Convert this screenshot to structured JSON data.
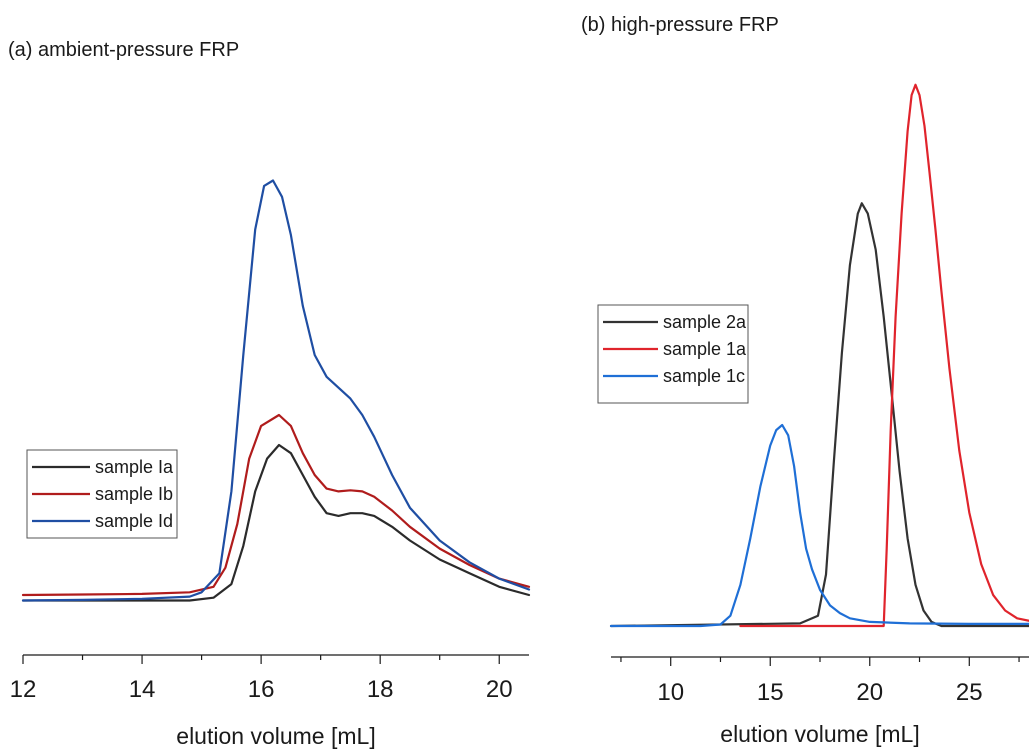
{
  "chart_data": [
    {
      "type": "line",
      "title": "(a) ambient-pressure FRP",
      "xlabel": "elution volume [mL]",
      "ylabel": "",
      "xlim": [
        12,
        20.5
      ],
      "ylim": [
        0,
        1.1
      ],
      "x_ticks": [
        12,
        14,
        16,
        18,
        20
      ],
      "x_tick_labels": [
        "12",
        "14",
        "16",
        "18",
        "20"
      ],
      "y_axis_shown": false,
      "grid": false,
      "legend_position": "left-middle",
      "series": [
        {
          "name": "sample Ia",
          "color": "#2b2b2b",
          "x": [
            12,
            13,
            14,
            14.8,
            15.2,
            15.5,
            15.7,
            15.9,
            16.1,
            16.3,
            16.5,
            16.7,
            16.9,
            17.1,
            17.3,
            17.5,
            17.7,
            17.9,
            18.2,
            18.5,
            19.0,
            19.5,
            20.0,
            20.5
          ],
          "y": [
            0.1,
            0.1,
            0.1,
            0.1,
            0.105,
            0.13,
            0.2,
            0.3,
            0.36,
            0.385,
            0.37,
            0.33,
            0.29,
            0.26,
            0.255,
            0.26,
            0.26,
            0.255,
            0.235,
            0.21,
            0.175,
            0.15,
            0.125,
            0.11
          ]
        },
        {
          "name": "sample Ib",
          "color": "#b01c1c",
          "x": [
            12,
            13,
            14,
            14.8,
            15.2,
            15.4,
            15.6,
            15.8,
            16.0,
            16.3,
            16.5,
            16.7,
            16.9,
            17.1,
            17.3,
            17.5,
            17.7,
            17.9,
            18.2,
            18.5,
            19.0,
            19.5,
            20.0,
            20.5
          ],
          "y": [
            0.11,
            0.111,
            0.112,
            0.115,
            0.125,
            0.16,
            0.24,
            0.36,
            0.42,
            0.44,
            0.42,
            0.37,
            0.33,
            0.305,
            0.3,
            0.302,
            0.3,
            0.29,
            0.265,
            0.235,
            0.195,
            0.165,
            0.14,
            0.125
          ]
        },
        {
          "name": "sample Id",
          "color": "#1f4ea3",
          "x": [
            12,
            13,
            14,
            14.8,
            15.0,
            15.3,
            15.5,
            15.7,
            15.9,
            16.05,
            16.2,
            16.35,
            16.5,
            16.7,
            16.9,
            17.1,
            17.3,
            17.5,
            17.7,
            17.9,
            18.2,
            18.5,
            19.0,
            19.5,
            20.0,
            20.5
          ],
          "y": [
            0.1,
            0.101,
            0.103,
            0.107,
            0.115,
            0.15,
            0.3,
            0.55,
            0.78,
            0.86,
            0.87,
            0.84,
            0.77,
            0.64,
            0.55,
            0.51,
            0.49,
            0.47,
            0.44,
            0.4,
            0.33,
            0.27,
            0.21,
            0.17,
            0.14,
            0.12
          ]
        }
      ]
    },
    {
      "type": "line",
      "title": "(b) high-pressure FRP",
      "xlabel": "elution volume [mL]",
      "ylabel": "",
      "xlim": [
        7,
        28
      ],
      "ylim": [
        0,
        1.1
      ],
      "x_ticks": [
        10,
        15,
        20,
        25
      ],
      "x_tick_labels": [
        "10",
        "15",
        "20",
        "25"
      ],
      "y_axis_shown": false,
      "grid": false,
      "legend_position": "left-middle",
      "series": [
        {
          "name": "sample 2a",
          "color": "#333333",
          "x": [
            7,
            16.5,
            17.4,
            17.8,
            18.2,
            18.6,
            19.0,
            19.4,
            19.6,
            19.9,
            20.3,
            20.7,
            21.1,
            21.5,
            21.9,
            22.3,
            22.7,
            23.1,
            23.6,
            28
          ],
          "y": [
            0,
            0.005,
            0.02,
            0.1,
            0.32,
            0.53,
            0.7,
            0.8,
            0.82,
            0.8,
            0.73,
            0.6,
            0.45,
            0.3,
            0.17,
            0.08,
            0.03,
            0.008,
            0.0,
            0.0
          ]
        },
        {
          "name": "sample 1a",
          "color": "#e0242c",
          "x": [
            13.5,
            20.7,
            20.85,
            21.05,
            21.3,
            21.6,
            21.9,
            22.1,
            22.3,
            22.5,
            22.75,
            23.0,
            23.3,
            23.6,
            24.0,
            24.5,
            25.0,
            25.6,
            26.2,
            26.8,
            27.4,
            28.0
          ],
          "y": [
            0,
            0,
            0.15,
            0.38,
            0.6,
            0.8,
            0.96,
            1.03,
            1.05,
            1.03,
            0.97,
            0.88,
            0.77,
            0.65,
            0.5,
            0.34,
            0.22,
            0.12,
            0.06,
            0.03,
            0.015,
            0.01
          ]
        },
        {
          "name": "sample 1c",
          "color": "#1f6fd6",
          "x": [
            7,
            11.5,
            12.5,
            13.0,
            13.5,
            14.0,
            14.5,
            15.0,
            15.3,
            15.6,
            15.9,
            16.2,
            16.5,
            16.8,
            17.1,
            17.5,
            18.0,
            18.5,
            19.0,
            20.0,
            22.0,
            25.0,
            28.0
          ],
          "y": [
            0,
            0,
            0.003,
            0.02,
            0.08,
            0.17,
            0.27,
            0.35,
            0.38,
            0.39,
            0.37,
            0.31,
            0.22,
            0.15,
            0.11,
            0.07,
            0.04,
            0.025,
            0.015,
            0.008,
            0.005,
            0.004,
            0.004
          ]
        }
      ]
    }
  ]
}
